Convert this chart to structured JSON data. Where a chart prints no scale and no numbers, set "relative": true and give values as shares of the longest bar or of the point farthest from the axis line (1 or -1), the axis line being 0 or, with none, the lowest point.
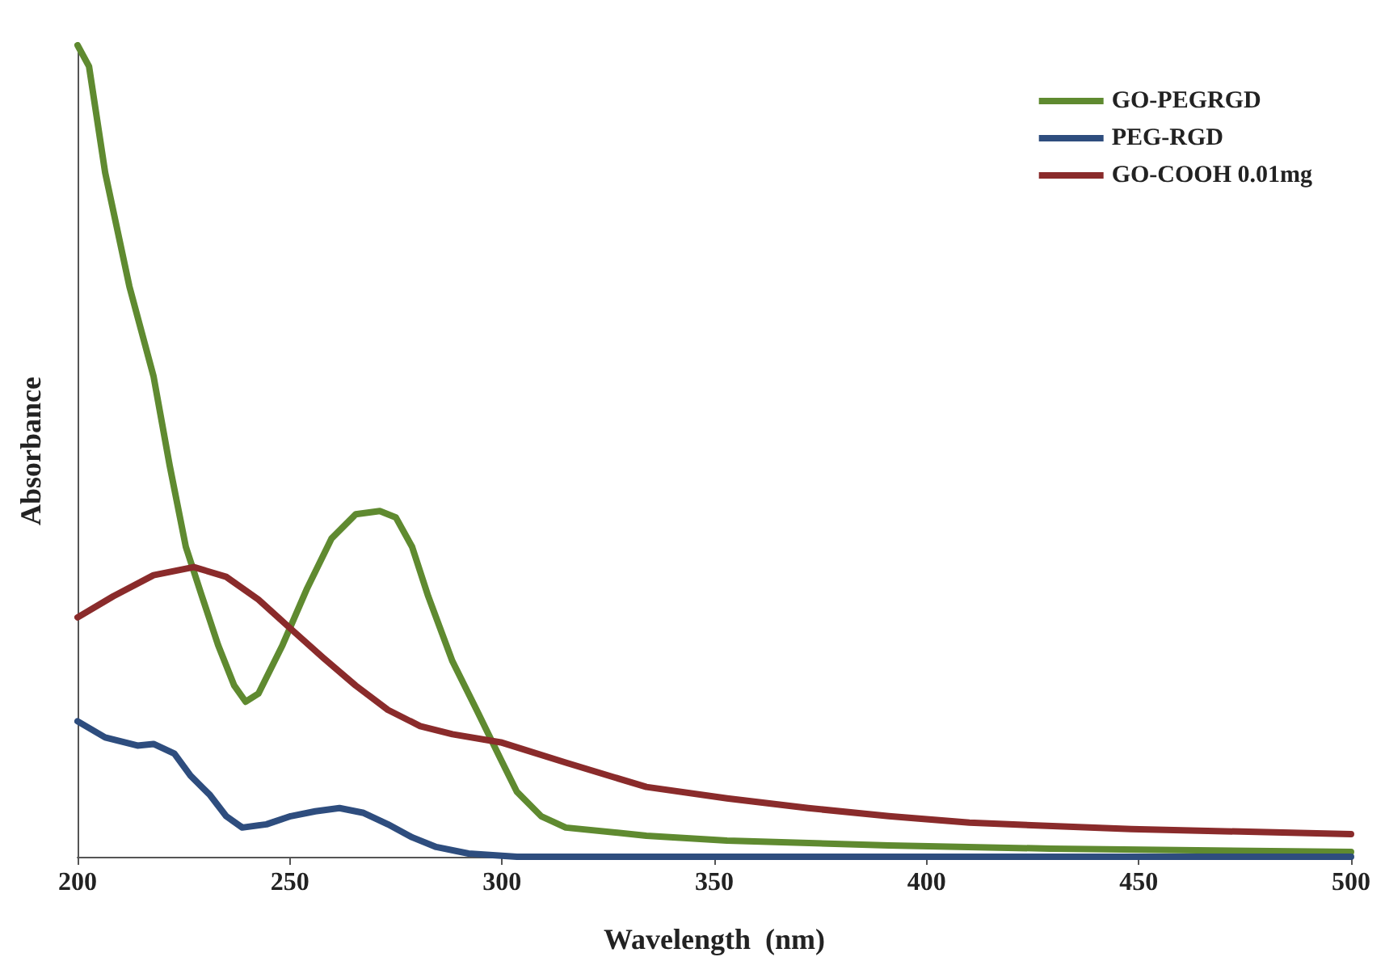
{
  "chart_data": {
    "type": "line",
    "relative": true,
    "xlabel": "Wavelength  (nm)",
    "ylabel": "Absorbance",
    "xlim": [
      200,
      500
    ],
    "xticks": [
      200,
      250,
      300,
      350,
      400,
      450,
      500
    ],
    "tick_labels": "x",
    "grid": false,
    "legend": "top right",
    "marker": "none",
    "line_style": "solid",
    "series": [
      {
        "name": "GO-PEGRGD",
        "color": "#5f8a30",
        "x": [
          200,
          202.7,
          206.5,
          212.2,
          217.9,
          221.7,
          225.5,
          229.3,
          233.1,
          236.9,
          239.6,
          242.6,
          248.3,
          254.1,
          259.8,
          265.5,
          271.2,
          275.0,
          278.8,
          282.6,
          288.3,
          294.0,
          299.7,
          303.5,
          309.2,
          315.0,
          334.0,
          353.0,
          391.1,
          429.2,
          500
        ],
        "values": [
          1.0,
          0.974,
          0.843,
          0.703,
          0.592,
          0.482,
          0.382,
          0.321,
          0.261,
          0.211,
          0.191,
          0.201,
          0.261,
          0.331,
          0.392,
          0.422,
          0.426,
          0.418,
          0.382,
          0.321,
          0.241,
          0.181,
          0.12,
          0.08,
          0.05,
          0.036,
          0.026,
          0.02,
          0.014,
          0.01,
          0.006
        ]
      },
      {
        "name": "PEG-RGD",
        "color": "#2e4d7e",
        "x": [
          200,
          206.5,
          214.1,
          217.9,
          222.8,
          226.6,
          231.2,
          235.0,
          238.8,
          244.5,
          250.2,
          256.0,
          261.7,
          267.4,
          273.1,
          278.8,
          284.5,
          292.1,
          303.5,
          500
        ],
        "values": [
          0.167,
          0.147,
          0.137,
          0.139,
          0.127,
          0.1,
          0.076,
          0.05,
          0.036,
          0.04,
          0.05,
          0.056,
          0.06,
          0.054,
          0.04,
          0.024,
          0.012,
          0.004,
          0,
          0
        ]
      },
      {
        "name": "GO-COOH 0.01mg",
        "color": "#8a2b2b",
        "x": [
          200,
          208.4,
          217.9,
          227.4,
          235.0,
          242.6,
          250.2,
          257.9,
          265.5,
          273.1,
          280.7,
          288.3,
          299.7,
          315.0,
          334.0,
          353.0,
          372.1,
          391.1,
          410.1,
          448.2,
          500
        ],
        "values": [
          0.295,
          0.321,
          0.347,
          0.357,
          0.345,
          0.317,
          0.281,
          0.245,
          0.211,
          0.181,
          0.161,
          0.151,
          0.141,
          0.116,
          0.086,
          0.072,
          0.06,
          0.05,
          0.042,
          0.034,
          0.028
        ]
      }
    ]
  }
}
